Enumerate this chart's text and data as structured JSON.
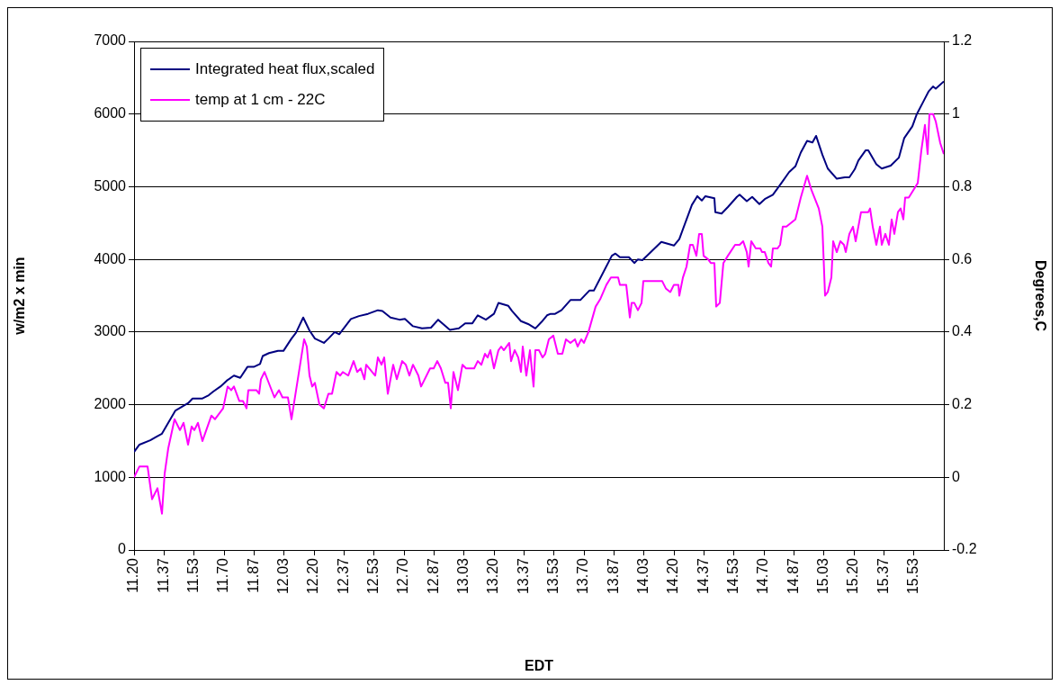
{
  "chart_data": {
    "type": "line",
    "xlabel": "EDT",
    "ylabel": "w/m2 x min",
    "y2label": "Degrees,C",
    "xlim": [
      11.2,
      15.7
    ],
    "xticks": [
      {
        "value": 11.2,
        "label": "11.20"
      },
      {
        "value": 11.367,
        "label": "11.37"
      },
      {
        "value": 11.533,
        "label": "11.53"
      },
      {
        "value": 11.7,
        "label": "11.70"
      },
      {
        "value": 11.867,
        "label": "11.87"
      },
      {
        "value": 12.033,
        "label": "12.03"
      },
      {
        "value": 12.2,
        "label": "12.20"
      },
      {
        "value": 12.367,
        "label": "12.37"
      },
      {
        "value": 12.533,
        "label": "12.53"
      },
      {
        "value": 12.7,
        "label": "12.70"
      },
      {
        "value": 12.867,
        "label": "12.87"
      },
      {
        "value": 13.033,
        "label": "13.03"
      },
      {
        "value": 13.2,
        "label": "13.20"
      },
      {
        "value": 13.367,
        "label": "13.37"
      },
      {
        "value": 13.533,
        "label": "13.53"
      },
      {
        "value": 13.7,
        "label": "13.70"
      },
      {
        "value": 13.867,
        "label": "13.87"
      },
      {
        "value": 14.033,
        "label": "14.03"
      },
      {
        "value": 14.2,
        "label": "14.20"
      },
      {
        "value": 14.367,
        "label": "14.37"
      },
      {
        "value": 14.533,
        "label": "14.53"
      },
      {
        "value": 14.7,
        "label": "14.70"
      },
      {
        "value": 14.867,
        "label": "14.87"
      },
      {
        "value": 15.033,
        "label": "15.03"
      },
      {
        "value": 15.2,
        "label": "15.20"
      },
      {
        "value": 15.367,
        "label": "15.37"
      },
      {
        "value": 15.533,
        "label": "15.53"
      }
    ],
    "ylim": [
      0,
      7000
    ],
    "yticks": [
      0,
      1000,
      2000,
      3000,
      4000,
      5000,
      6000,
      7000
    ],
    "y2lim": [
      -0.2,
      1.2
    ],
    "y2ticks": [
      -0.2,
      0,
      0.2,
      0.4,
      0.6,
      0.8,
      1,
      1.2
    ],
    "grid": "y",
    "legend": "top left",
    "series": [
      {
        "name": "Integrated heat flux,scaled",
        "color": "#000080",
        "x": [
          11.2,
          11.23,
          11.29,
          11.325,
          11.355,
          11.43,
          11.5,
          11.525,
          11.58,
          11.615,
          11.64,
          11.68,
          11.715,
          11.755,
          11.79,
          11.83,
          11.865,
          11.9,
          11.915,
          11.95,
          12.0,
          12.03,
          12.075,
          12.1,
          12.14,
          12.175,
          12.205,
          12.255,
          12.28,
          12.315,
          12.34,
          12.405,
          12.45,
          12.5,
          12.555,
          12.58,
          12.625,
          12.675,
          12.705,
          12.75,
          12.8,
          12.85,
          12.89,
          12.955,
          13.005,
          13.04,
          13.08,
          13.11,
          13.155,
          13.2,
          13.225,
          13.28,
          13.3,
          13.35,
          13.39,
          13.43,
          13.465,
          13.495,
          13.515,
          13.54,
          13.575,
          13.625,
          13.68,
          13.73,
          13.755,
          13.805,
          13.855,
          13.875,
          13.9,
          13.95,
          13.98,
          14.0,
          14.025,
          14.055,
          14.13,
          14.2,
          14.23,
          14.3,
          14.33,
          14.355,
          14.375,
          14.425,
          14.43,
          14.465,
          14.5,
          14.55,
          14.565,
          14.605,
          14.635,
          14.675,
          14.705,
          14.75,
          14.8,
          14.84,
          14.875,
          14.905,
          14.94,
          14.97,
          14.99,
          15.025,
          15.055,
          15.105,
          15.15,
          15.175,
          15.205,
          15.225,
          15.265,
          15.28,
          15.325,
          15.355,
          15.405,
          15.45,
          15.48,
          15.525,
          15.55,
          15.59,
          15.615,
          15.64,
          15.655,
          15.7
        ],
        "values": [
          1350,
          1450,
          1510,
          1560,
          1600,
          1920,
          2020,
          2085,
          2085,
          2130,
          2180,
          2250,
          2330,
          2400,
          2370,
          2520,
          2520,
          2560,
          2670,
          2710,
          2740,
          2740,
          2910,
          2990,
          3200,
          3020,
          2910,
          2850,
          2910,
          3000,
          2970,
          3180,
          3220,
          3250,
          3300,
          3290,
          3200,
          3170,
          3180,
          3080,
          3050,
          3060,
          3170,
          3030,
          3050,
          3120,
          3120,
          3230,
          3170,
          3250,
          3400,
          3360,
          3290,
          3150,
          3110,
          3050,
          3140,
          3230,
          3250,
          3250,
          3300,
          3440,
          3440,
          3570,
          3570,
          3810,
          4050,
          4080,
          4030,
          4030,
          3950,
          4000,
          3990,
          4060,
          4240,
          4190,
          4280,
          4750,
          4870,
          4810,
          4870,
          4840,
          4650,
          4630,
          4720,
          4860,
          4890,
          4800,
          4860,
          4760,
          4830,
          4890,
          5060,
          5200,
          5280,
          5470,
          5630,
          5610,
          5700,
          5440,
          5250,
          5110,
          5130,
          5130,
          5240,
          5360,
          5500,
          5500,
          5310,
          5250,
          5290,
          5400,
          5670,
          5830,
          6000,
          6190,
          6310,
          6380,
          6350,
          6450
        ]
      },
      {
        "name": "temp at 1 cm - 22C",
        "color": "#ff00ff",
        "axis": "y2",
        "x": [
          11.2,
          11.23,
          11.275,
          11.3,
          11.33,
          11.355,
          11.37,
          11.39,
          11.425,
          11.455,
          11.475,
          11.5,
          11.52,
          11.535,
          11.555,
          11.58,
          11.63,
          11.65,
          11.68,
          11.695,
          11.72,
          11.74,
          11.755,
          11.785,
          11.805,
          11.825,
          11.835,
          11.88,
          11.895,
          11.905,
          11.925,
          11.98,
          12.005,
          12.025,
          12.055,
          12.075,
          12.145,
          12.16,
          12.175,
          12.19,
          12.205,
          12.23,
          12.255,
          12.28,
          12.3,
          12.325,
          12.345,
          12.36,
          12.39,
          12.42,
          12.44,
          12.46,
          12.48,
          12.49,
          12.54,
          12.555,
          12.575,
          12.59,
          12.61,
          12.64,
          12.66,
          12.69,
          12.71,
          12.73,
          12.75,
          12.78,
          12.795,
          12.815,
          12.845,
          12.865,
          12.885,
          12.905,
          12.93,
          12.945,
          12.96,
          12.975,
          13.0,
          13.025,
          13.045,
          13.09,
          13.11,
          13.13,
          13.15,
          13.165,
          13.18,
          13.2,
          13.225,
          13.24,
          13.255,
          13.285,
          13.295,
          13.315,
          13.335,
          13.35,
          13.36,
          13.38,
          13.4,
          13.42,
          13.43,
          13.45,
          13.47,
          13.485,
          13.505,
          13.53,
          13.555,
          13.58,
          13.6,
          13.625,
          13.65,
          13.665,
          13.685,
          13.7,
          13.725,
          13.765,
          13.79,
          13.825,
          13.85,
          13.89,
          13.9,
          13.92,
          13.935,
          13.955,
          13.965,
          13.98,
          14.0,
          14.02,
          14.03,
          14.055,
          14.09,
          14.115,
          14.135,
          14.155,
          14.18,
          14.2,
          14.225,
          14.23,
          14.25,
          14.27,
          14.29,
          14.305,
          14.325,
          14.34,
          14.355,
          14.365,
          14.39,
          14.405,
          14.425,
          14.435,
          14.455,
          14.475,
          14.5,
          14.54,
          14.565,
          14.585,
          14.605,
          14.615,
          14.63,
          14.655,
          14.68,
          14.69,
          14.705,
          14.725,
          14.74,
          14.75,
          14.775,
          14.79,
          14.805,
          14.825,
          14.875,
          14.89,
          14.905,
          14.94,
          14.965,
          15.005,
          15.025,
          15.04,
          15.055,
          15.075,
          15.085,
          15.105,
          15.125,
          15.145,
          15.155,
          15.175,
          15.195,
          15.21,
          15.24,
          15.28,
          15.29,
          15.305,
          15.325,
          15.345,
          15.355,
          15.375,
          15.395,
          15.41,
          15.425,
          15.445,
          15.46,
          15.475,
          15.485,
          15.505,
          15.555,
          15.575,
          15.595,
          15.61,
          15.62,
          15.64,
          15.655,
          15.68,
          15.7
        ],
        "values": [
          0.0,
          0.03,
          0.03,
          -0.06,
          -0.03,
          -0.1,
          0.01,
          0.08,
          0.16,
          0.13,
          0.15,
          0.09,
          0.14,
          0.13,
          0.15,
          0.1,
          0.17,
          0.16,
          0.18,
          0.19,
          0.25,
          0.24,
          0.25,
          0.21,
          0.21,
          0.19,
          0.24,
          0.24,
          0.23,
          0.27,
          0.29,
          0.22,
          0.24,
          0.22,
          0.22,
          0.16,
          0.38,
          0.36,
          0.28,
          0.25,
          0.26,
          0.2,
          0.19,
          0.23,
          0.23,
          0.29,
          0.28,
          0.29,
          0.28,
          0.32,
          0.29,
          0.3,
          0.27,
          0.31,
          0.28,
          0.33,
          0.31,
          0.33,
          0.23,
          0.31,
          0.27,
          0.32,
          0.31,
          0.28,
          0.31,
          0.28,
          0.25,
          0.27,
          0.3,
          0.3,
          0.32,
          0.3,
          0.26,
          0.26,
          0.19,
          0.29,
          0.24,
          0.31,
          0.3,
          0.3,
          0.32,
          0.31,
          0.34,
          0.33,
          0.35,
          0.3,
          0.35,
          0.36,
          0.35,
          0.37,
          0.32,
          0.35,
          0.33,
          0.29,
          0.36,
          0.28,
          0.35,
          0.25,
          0.35,
          0.35,
          0.33,
          0.34,
          0.38,
          0.39,
          0.34,
          0.34,
          0.38,
          0.37,
          0.38,
          0.36,
          0.38,
          0.37,
          0.4,
          0.47,
          0.49,
          0.53,
          0.55,
          0.55,
          0.53,
          0.53,
          0.53,
          0.44,
          0.48,
          0.48,
          0.46,
          0.48,
          0.54,
          0.54,
          0.54,
          0.54,
          0.54,
          0.52,
          0.51,
          0.53,
          0.53,
          0.5,
          0.55,
          0.58,
          0.64,
          0.64,
          0.61,
          0.67,
          0.67,
          0.61,
          0.6,
          0.59,
          0.59,
          0.47,
          0.48,
          0.59,
          0.61,
          0.64,
          0.64,
          0.65,
          0.62,
          0.58,
          0.65,
          0.63,
          0.63,
          0.62,
          0.62,
          0.59,
          0.58,
          0.63,
          0.63,
          0.64,
          0.69,
          0.69,
          0.71,
          0.74,
          0.77,
          0.83,
          0.79,
          0.74,
          0.69,
          0.5,
          0.51,
          0.55,
          0.65,
          0.62,
          0.65,
          0.64,
          0.62,
          0.67,
          0.69,
          0.65,
          0.73,
          0.73,
          0.74,
          0.69,
          0.64,
          0.69,
          0.64,
          0.67,
          0.64,
          0.71,
          0.67,
          0.73,
          0.74,
          0.71,
          0.77,
          0.77,
          0.81,
          0.9,
          0.97,
          0.89,
          1.0,
          1.0,
          0.98,
          0.92,
          0.89
        ]
      }
    ]
  }
}
